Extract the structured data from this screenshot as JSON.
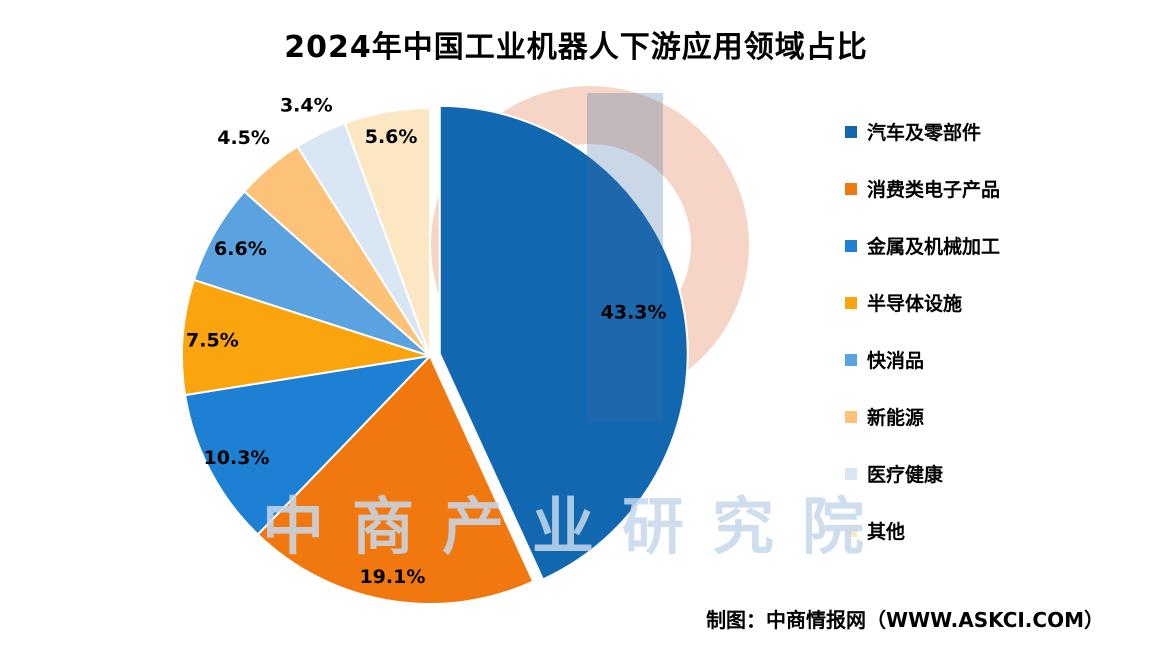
{
  "title": "2024年中国工业机器人下游应用领域占比",
  "watermark": "中商产业研究院",
  "source": "制图：中商情报网（WWW.ASKCI.COM）",
  "brand_colors": {
    "watermark_text": "#c6d9ec",
    "logo_ring": "#f5d0c0",
    "logo_bar": "#3c6ca3"
  },
  "chart_data": {
    "type": "pie",
    "title": "2024年中国工业机器人下游应用领域占比",
    "unit": "%",
    "start_angle_deg": -90,
    "direction": "clockwise",
    "legend_position": "right",
    "slices": [
      {
        "label": "汽车及零部件",
        "value": 43.3,
        "color": "#1268b0",
        "exploded": true
      },
      {
        "label": "消费类电子产品",
        "value": 19.1,
        "color": "#f0780f"
      },
      {
        "label": "金属及机械加工",
        "value": 10.3,
        "color": "#1d80d2"
      },
      {
        "label": "半导体设施",
        "value": 7.5,
        "color": "#faa40e"
      },
      {
        "label": "快消品",
        "value": 6.6,
        "color": "#5ba3e0"
      },
      {
        "label": "新能源",
        "value": 4.5,
        "color": "#fbc278"
      },
      {
        "label": "医疗健康",
        "value": 3.4,
        "color": "#d9e7f5"
      },
      {
        "label": "其他",
        "value": 5.6,
        "color": "#fbe8c2"
      }
    ]
  }
}
